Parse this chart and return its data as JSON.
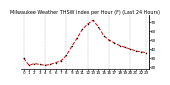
{
  "title": "Milwaukee Weather THSW Index per Hour (F) (Last 24 Hours)",
  "x_values": [
    0,
    1,
    2,
    3,
    4,
    5,
    6,
    7,
    8,
    9,
    10,
    11,
    12,
    13,
    14,
    15,
    16,
    17,
    18,
    19,
    20,
    21,
    22,
    23
  ],
  "y_values": [
    30,
    22,
    24,
    23,
    22,
    23,
    25,
    27,
    33,
    43,
    52,
    62,
    68,
    72,
    65,
    55,
    50,
    47,
    44,
    42,
    40,
    38,
    37,
    36
  ],
  "line_color": "#dd0000",
  "marker_color": "#000000",
  "bg_color": "#ffffff",
  "grid_color": "#888888",
  "ylim": [
    18,
    78
  ],
  "ytick_vals": [
    20,
    30,
    40,
    50,
    60,
    70
  ],
  "ytick_labels": [
    "20",
    "30",
    "40",
    "50",
    "60",
    "70"
  ],
  "vgrid_positions": [
    0,
    4,
    8,
    12,
    16,
    20,
    23
  ],
  "title_fontsize": 3.5,
  "tick_fontsize": 3.0,
  "linewidth": 0.7,
  "markersize": 1.5
}
